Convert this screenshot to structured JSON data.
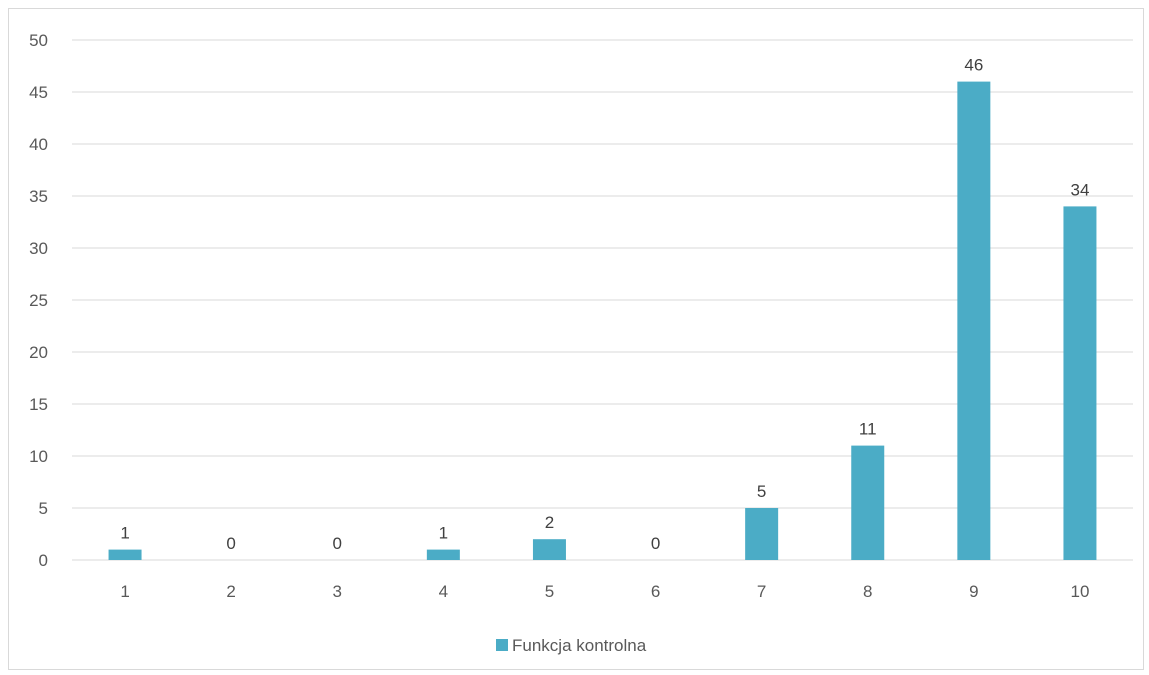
{
  "chart_data": {
    "type": "bar",
    "categories": [
      "1",
      "2",
      "3",
      "4",
      "5",
      "6",
      "7",
      "8",
      "9",
      "10"
    ],
    "series": [
      {
        "name": "Funkcja kontrolna",
        "values": [
          1,
          0,
          0,
          1,
          2,
          0,
          5,
          11,
          46,
          34
        ],
        "color": "#4bacc6"
      }
    ],
    "ylim": [
      0,
      50
    ],
    "yticks": [
      0,
      5,
      10,
      15,
      20,
      25,
      30,
      35,
      40,
      45,
      50
    ],
    "grid": true,
    "legend_position": "bottom",
    "data_labels": true
  },
  "colors": {
    "bar": "#4bacc6",
    "grid": "#d9d9d9",
    "axis_text": "#595959",
    "label_text": "#404040",
    "frame": "#d9d9d9"
  }
}
